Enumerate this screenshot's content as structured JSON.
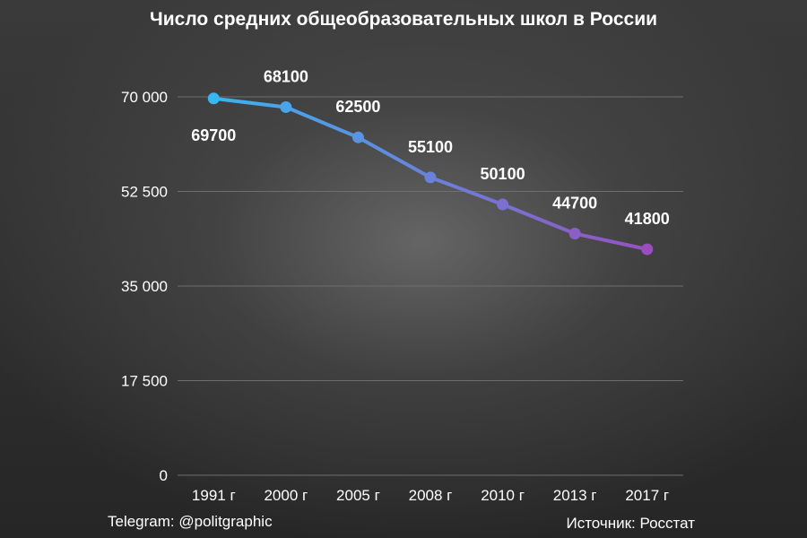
{
  "chart_data": {
    "type": "line",
    "title": "Число средних общеобразовательных школ в России",
    "categories": [
      "1991 г",
      "2000 г",
      "2005 г",
      "2008 г",
      "2010 г",
      "2013 г",
      "2017 г"
    ],
    "series": [
      {
        "values": [
          69700,
          68100,
          62500,
          55100,
          50100,
          44700,
          41800
        ]
      }
    ],
    "data_labels": [
      "69700",
      "68100",
      "62500",
      "55100",
      "50100",
      "44700",
      "41800"
    ],
    "y_ticks": [
      0,
      17500,
      35000,
      52500,
      70000
    ],
    "y_tick_labels": [
      "0",
      "17 500",
      "35 000",
      "52 500",
      "70 000"
    ],
    "ylim": [
      0,
      70000
    ],
    "grid": true,
    "line_gradient": [
      "#38b6f2",
      "#9b4dbf"
    ]
  },
  "footer": {
    "left": "Telegram: @politgraphic",
    "right": "Источник: Росстат"
  },
  "colors": {
    "background": "#333333",
    "text": "#ffffff",
    "grid": "#6e6e6e"
  }
}
